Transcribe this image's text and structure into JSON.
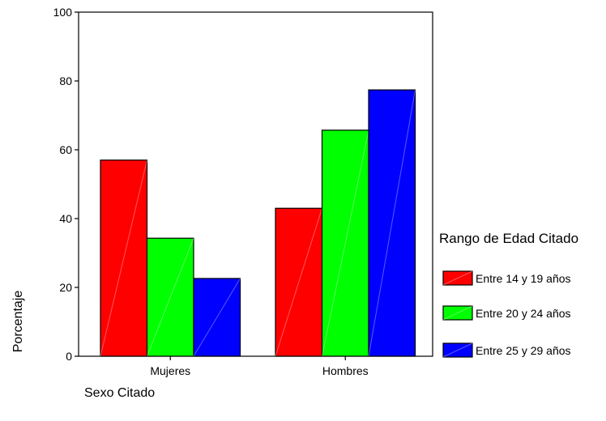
{
  "chart_data": {
    "type": "bar",
    "title": "",
    "xlabel": "Sexo Citado",
    "ylabel": "Porcentaje",
    "categories": [
      "Mujeres",
      "Hombres"
    ],
    "series": [
      {
        "name": "Entre 14 y 19 años",
        "color": "#ff0000",
        "values": [
          57,
          43
        ]
      },
      {
        "name": "Entre 20 y 24 años",
        "color": "#00ff00",
        "values": [
          34.3,
          65.7
        ]
      },
      {
        "name": "Entre 25 y 29 años",
        "color": "#0000ff",
        "values": [
          22.6,
          77.4
        ]
      }
    ],
    "ylim": [
      0,
      100
    ],
    "yticks": [
      "0",
      "20",
      "40",
      "60",
      "80",
      "100"
    ],
    "legend": {
      "title": "Rango de Edad Citado",
      "position": "right"
    },
    "grid": false
  }
}
